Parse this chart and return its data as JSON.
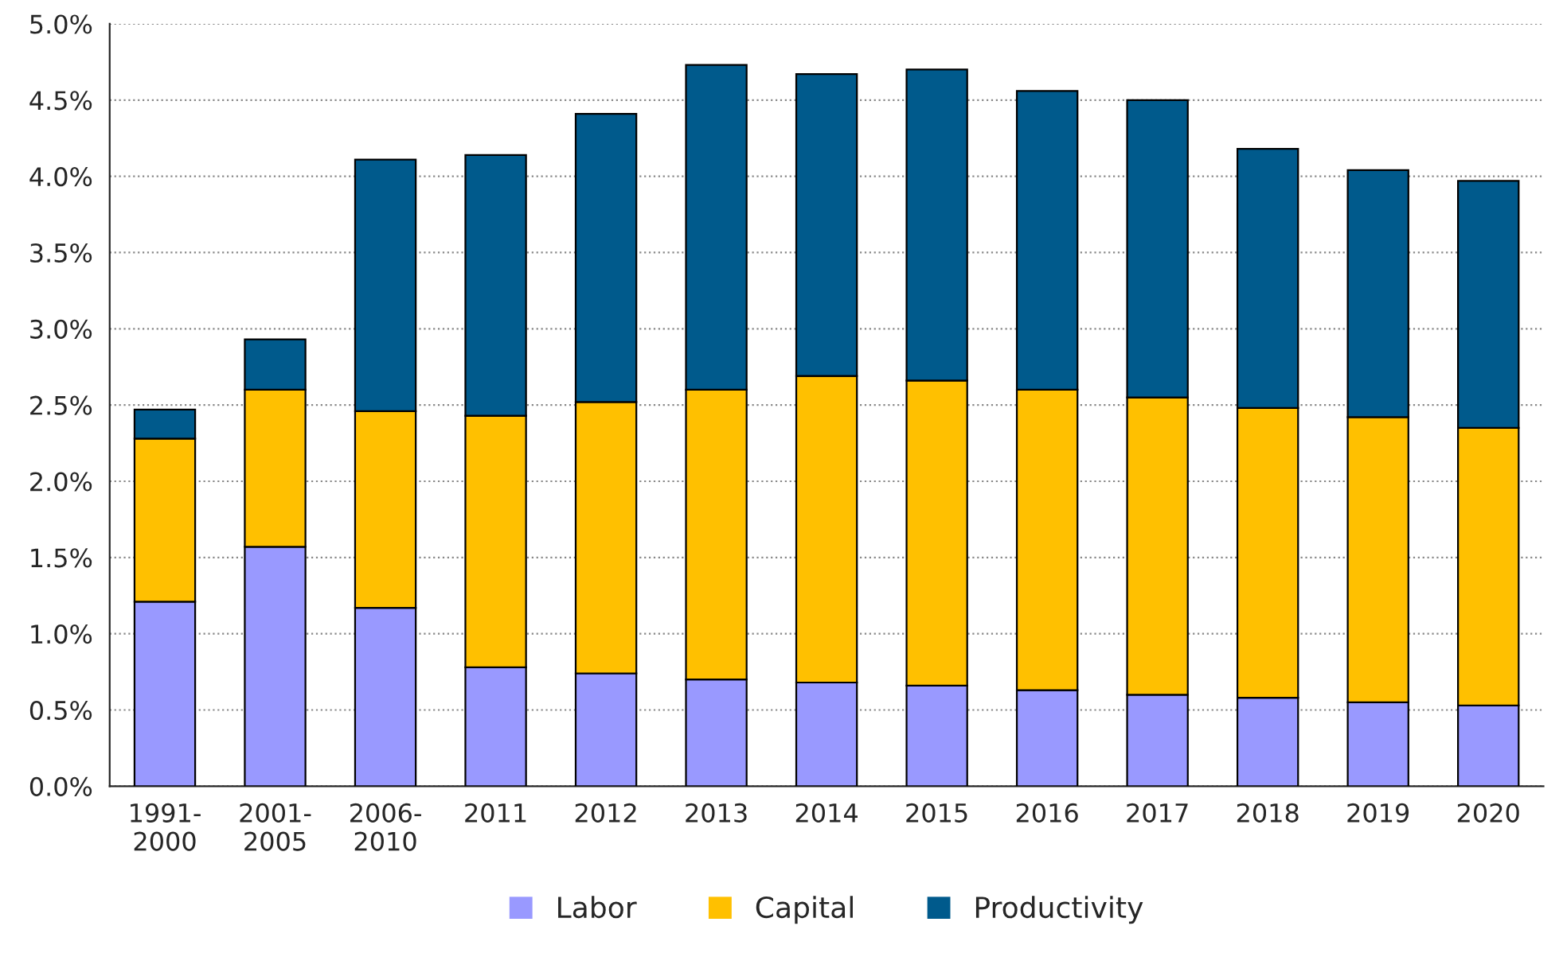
{
  "chart_data": {
    "type": "bar",
    "stacked": true,
    "categories": [
      "1991-\n2000",
      "2001-\n2005",
      "2006-\n2010",
      "2011",
      "2012",
      "2013",
      "2014",
      "2015",
      "2016",
      "2017",
      "2018",
      "2019",
      "2020"
    ],
    "series": [
      {
        "name": "Labor",
        "color": "#9999ff",
        "values": [
          1.21,
          1.57,
          1.17,
          0.78,
          0.74,
          0.7,
          0.68,
          0.66,
          0.63,
          0.6,
          0.58,
          0.55,
          0.53
        ]
      },
      {
        "name": "Capital",
        "color": "#ffc000",
        "values": [
          1.07,
          1.03,
          1.29,
          1.65,
          1.78,
          1.9,
          2.01,
          2.0,
          1.97,
          1.95,
          1.9,
          1.87,
          1.82
        ]
      },
      {
        "name": "Productivity",
        "color": "#005a8c",
        "values": [
          0.19,
          0.33,
          1.65,
          1.71,
          1.89,
          2.13,
          1.98,
          2.04,
          1.96,
          1.95,
          1.7,
          1.62,
          1.62
        ]
      }
    ],
    "ylim": [
      0,
      5
    ],
    "yticks": [
      {
        "value": 0,
        "label": "0.0%"
      },
      {
        "value": 0.5,
        "label": "0.5%"
      },
      {
        "value": 1,
        "label": "1.0%"
      },
      {
        "value": 1.5,
        "label": "1.5%"
      },
      {
        "value": 2,
        "label": "2.0%"
      },
      {
        "value": 2.5,
        "label": "2.5%"
      },
      {
        "value": 3,
        "label": "3.0%"
      },
      {
        "value": 3.5,
        "label": "3.5%"
      },
      {
        "value": 4,
        "label": "4.0%"
      },
      {
        "value": 4.5,
        "label": "4.5%"
      },
      {
        "value": 5,
        "label": "5.0%"
      }
    ],
    "grid": "y",
    "legend": "bottom"
  }
}
